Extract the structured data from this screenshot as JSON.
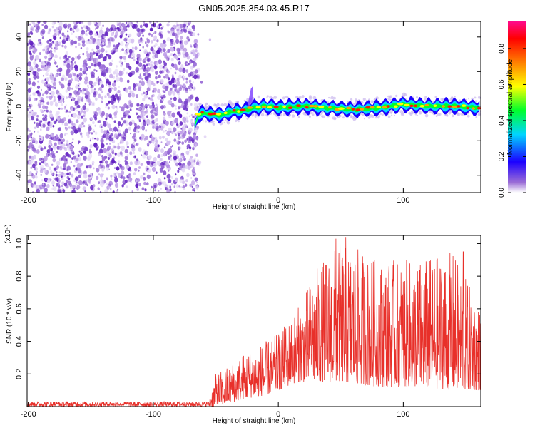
{
  "title": "GN05.2025.354.03.45.R17",
  "chart_data": [
    {
      "type": "heatmap",
      "title": "GN05.2025.354.03.45.R17",
      "xlabel": "Height of straight line (km)",
      "ylabel": "Frequency (Hz)",
      "xlim": [
        -201,
        162
      ],
      "ylim": [
        -50,
        49
      ],
      "xticks": [
        -200,
        -100,
        0,
        100
      ],
      "yticks": [
        -40,
        -20,
        0,
        20,
        40
      ],
      "noise_region_x": [
        -201,
        -64
      ],
      "ridge": [
        {
          "x": -67,
          "y": -12
        },
        {
          "x": -64,
          "y": -5
        },
        {
          "x": -60,
          "y": -4
        },
        {
          "x": -50,
          "y": -5
        },
        {
          "x": -44,
          "y": -5
        },
        {
          "x": -38,
          "y": -3
        },
        {
          "x": -30,
          "y": -3
        },
        {
          "x": -20,
          "y": -1
        },
        {
          "x": -10,
          "y": 0
        },
        {
          "x": 0,
          "y": -1
        },
        {
          "x": 20,
          "y": 0
        },
        {
          "x": 40,
          "y": -1
        },
        {
          "x": 60,
          "y": -2
        },
        {
          "x": 80,
          "y": -1
        },
        {
          "x": 100,
          "y": 1
        },
        {
          "x": 120,
          "y": 0
        },
        {
          "x": 140,
          "y": 0
        },
        {
          "x": 162,
          "y": -1
        }
      ],
      "colorbar": {
        "label": "Normalized spectral amplitude",
        "range": [
          0.0,
          0.95
        ],
        "ticks": [
          "0.0",
          "0.2",
          "0.4",
          "0.6",
          "0.8"
        ],
        "colors": [
          "#ffffff",
          "#9a6cd6",
          "#1b00ff",
          "#00d5ff",
          "#00ff2b",
          "#ffff00",
          "#ff7f00",
          "#ff0000",
          "#ff0a8c"
        ]
      }
    },
    {
      "type": "line",
      "xlabel": "Height of straight line (km)",
      "ylabel": "SNR (10 * v/v)",
      "scale_label": "(x10⁴)",
      "xlim": [
        -201,
        162
      ],
      "ylim": [
        0,
        1.05
      ],
      "xticks": [
        -200,
        -100,
        0,
        100
      ],
      "yticks": [
        0.2,
        0.4,
        0.6,
        0.8,
        1.0
      ],
      "series": [
        {
          "name": "SNR",
          "color": "#e8302a",
          "envelope": [
            {
              "x": -201,
              "low": 0.0,
              "high": 0.03
            },
            {
              "x": -56,
              "low": 0.0,
              "high": 0.03
            },
            {
              "x": -50,
              "low": 0.0,
              "high": 0.2
            },
            {
              "x": -40,
              "low": 0.02,
              "high": 0.25
            },
            {
              "x": -25,
              "low": 0.05,
              "high": 0.35
            },
            {
              "x": -10,
              "low": 0.07,
              "high": 0.4
            },
            {
              "x": 0,
              "low": 0.1,
              "high": 0.45
            },
            {
              "x": 15,
              "low": 0.15,
              "high": 0.6
            },
            {
              "x": 30,
              "low": 0.15,
              "high": 0.85
            },
            {
              "x": 50,
              "low": 0.15,
              "high": 1.02
            },
            {
              "x": 80,
              "low": 0.12,
              "high": 0.9
            },
            {
              "x": 110,
              "low": 0.12,
              "high": 0.9
            },
            {
              "x": 140,
              "low": 0.1,
              "high": 0.95
            },
            {
              "x": 162,
              "low": 0.1,
              "high": 0.6
            }
          ],
          "peaks": [
            {
              "x": 46,
              "y": 1.03
            },
            {
              "x": 54,
              "y": 1.04
            },
            {
              "x": 148,
              "y": 0.95
            }
          ]
        }
      ]
    }
  ]
}
